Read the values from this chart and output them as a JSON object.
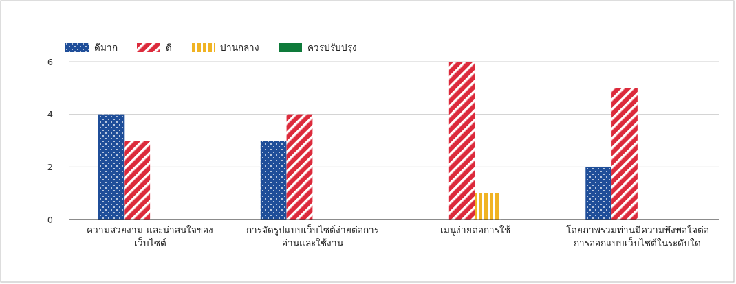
{
  "chart_data": {
    "type": "bar",
    "categories": [
      "ความสวยงาม และน่าสนใจของเว็บไซต์",
      "การจัดรูปแบบเว็บไซต์ง่ายต่อการอ่านและใช้งาน",
      "เมนูง่ายต่อการใช้",
      "โดยภาพรวมท่านมีความพึงพอใจต่อการออกแบบเว็บไซต์ในระดับใด"
    ],
    "series": [
      {
        "name": "ดีมาก",
        "color": "#1f4e99",
        "values": [
          4,
          3,
          0,
          2
        ]
      },
      {
        "name": "ดี",
        "color": "#dc2a3b",
        "values": [
          3,
          4,
          6,
          5
        ]
      },
      {
        "name": "ปานกลาง",
        "color": "#f0b323",
        "values": [
          0,
          0,
          1,
          0
        ]
      },
      {
        "name": "ควรปรับปรุง",
        "color": "#0e7a3a",
        "values": [
          0,
          0,
          0,
          0
        ]
      }
    ],
    "ylim": [
      0,
      6
    ],
    "yticks": [
      0,
      2,
      4,
      6
    ],
    "grid": "y",
    "legend": "top left"
  }
}
